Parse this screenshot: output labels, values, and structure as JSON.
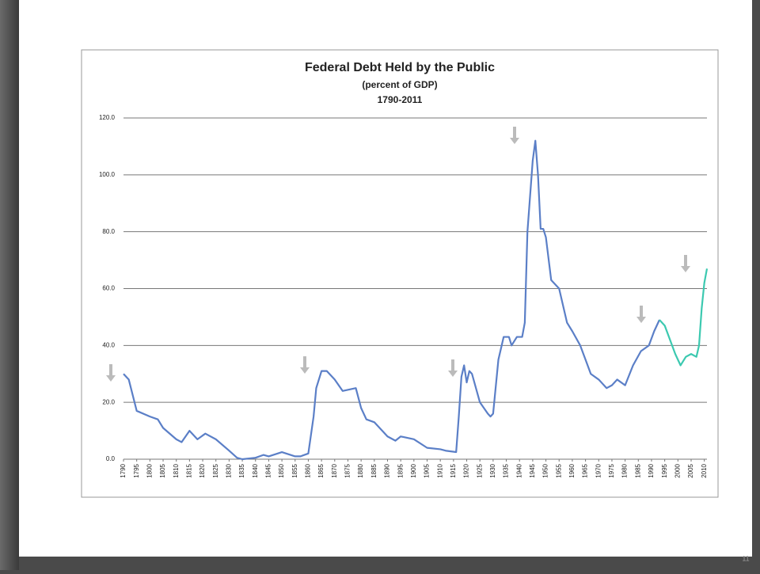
{
  "page_number": "11",
  "chart_data": {
    "type": "line",
    "title": "Federal Debt Held by the Public",
    "subtitle": "(percent of GDP)",
    "period": "1790-2011",
    "x": [
      1790,
      1792,
      1795,
      1800,
      1803,
      1805,
      1810,
      1812,
      1815,
      1818,
      1821,
      1825,
      1830,
      1833,
      1835,
      1840,
      1843,
      1845,
      1850,
      1855,
      1857,
      1860,
      1862,
      1863,
      1865,
      1867,
      1870,
      1873,
      1878,
      1880,
      1882,
      1885,
      1890,
      1893,
      1895,
      1900,
      1905,
      1910,
      1912,
      1916,
      1917,
      1918,
      1919,
      1920,
      1921,
      1922,
      1925,
      1928,
      1929,
      1930,
      1932,
      1934,
      1936,
      1937,
      1939,
      1941,
      1942,
      1943,
      1945,
      1946,
      1947,
      1948,
      1949,
      1950,
      1952,
      1955,
      1957,
      1958,
      1960,
      1963,
      1965,
      1967,
      1970,
      1973,
      1975,
      1977,
      1980,
      1983,
      1986,
      1989,
      1991,
      1993,
      1995,
      1997,
      1999,
      2001,
      2003,
      2005,
      2007,
      2008,
      2009,
      2010,
      2011
    ],
    "series": [
      {
        "color": "#5b7fc7",
        "values": [
          30,
          28,
          17,
          15,
          14,
          11,
          7,
          6,
          10,
          7,
          9,
          7,
          3,
          0.5,
          0,
          0.5,
          1.5,
          1,
          2.5,
          1,
          1,
          2,
          15,
          25,
          31,
          31,
          28,
          24,
          25,
          18,
          14,
          13,
          8,
          6.5,
          8,
          7,
          4,
          3.5,
          3,
          2.5,
          15,
          29,
          33,
          27,
          31,
          30,
          20,
          16,
          15,
          16,
          35,
          43,
          43,
          40,
          43,
          43,
          48,
          80,
          105,
          112,
          100,
          81,
          81,
          78,
          63,
          60,
          52,
          48,
          45,
          40,
          35,
          30,
          28,
          25,
          26,
          28,
          26,
          33,
          38,
          40,
          45,
          49,
          null,
          null,
          null,
          null,
          null,
          null,
          null,
          null,
          null,
          null,
          null
        ]
      },
      {
        "color": "#3cc9b0",
        "values": [
          null,
          null,
          null,
          null,
          null,
          null,
          null,
          null,
          null,
          null,
          null,
          null,
          null,
          null,
          null,
          null,
          null,
          null,
          null,
          null,
          null,
          null,
          null,
          null,
          null,
          null,
          null,
          null,
          null,
          null,
          null,
          null,
          null,
          null,
          null,
          null,
          null,
          null,
          null,
          null,
          null,
          null,
          null,
          null,
          null,
          null,
          null,
          null,
          null,
          null,
          null,
          null,
          null,
          null,
          null,
          null,
          null,
          null,
          null,
          null,
          null,
          null,
          null,
          null,
          null,
          null,
          null,
          null,
          null,
          null,
          null,
          null,
          null,
          null,
          null,
          null,
          null,
          null,
          null,
          null,
          null,
          49,
          47,
          42,
          37,
          33,
          36,
          37,
          36,
          40,
          53,
          62,
          67
        ]
      }
    ],
    "xlim": [
      1790,
      2011
    ],
    "xticks": [
      1790,
      1795,
      1800,
      1805,
      1810,
      1815,
      1820,
      1825,
      1830,
      1835,
      1840,
      1845,
      1850,
      1855,
      1860,
      1865,
      1870,
      1875,
      1880,
      1885,
      1890,
      1895,
      1900,
      1905,
      1910,
      1915,
      1920,
      1925,
      1930,
      1935,
      1940,
      1945,
      1950,
      1955,
      1960,
      1965,
      1970,
      1975,
      1980,
      1985,
      1990,
      1995,
      2000,
      2005,
      2010
    ],
    "ylim": [
      0,
      120
    ],
    "yticks": [
      {
        "value": 0,
        "label": "0.0"
      },
      {
        "value": 20,
        "label": "20.0"
      },
      {
        "value": 40,
        "label": "40.0"
      },
      {
        "value": 60,
        "label": "60.0"
      },
      {
        "value": 80,
        "label": "80.0"
      },
      {
        "value": 100,
        "label": "100.0"
      },
      {
        "value": 120,
        "label": "120.0"
      }
    ],
    "grid": true
  }
}
